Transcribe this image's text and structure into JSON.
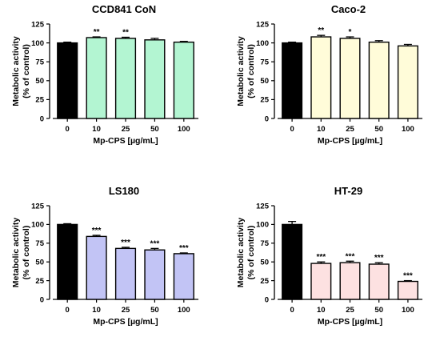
{
  "chart_data": [
    {
      "type": "bar",
      "title": "CCD841 CoN",
      "xlabel": "Mp-CPS [µg/mL]",
      "ylabel": [
        "Metabolic activity",
        "(% of control)"
      ],
      "ylim": [
        0,
        125
      ],
      "yticks": [
        0,
        25,
        50,
        75,
        100,
        125
      ],
      "categories": [
        "0",
        "10",
        "25",
        "50",
        "100"
      ],
      "values": [
        100,
        107,
        106,
        104,
        101
      ],
      "errors": [
        1,
        1,
        1.5,
        2,
        1
      ],
      "significance": [
        "",
        "**",
        "**",
        "",
        ""
      ],
      "bar_colors": [
        "#000000",
        "#b3f5d2",
        "#b3f5d2",
        "#b3f5d2",
        "#b3f5d2"
      ]
    },
    {
      "type": "bar",
      "title": "Caco-2",
      "xlabel": "Mp-CPS [µg/mL]",
      "ylabel": [
        "Metabolic activity",
        "(% of control)"
      ],
      "ylim": [
        0,
        125
      ],
      "yticks": [
        0,
        25,
        50,
        75,
        100,
        125
      ],
      "categories": [
        "0",
        "10",
        "25",
        "50",
        "100"
      ],
      "values": [
        100,
        108,
        106,
        101,
        96
      ],
      "errors": [
        1,
        2,
        2,
        2,
        2
      ],
      "significance": [
        "",
        "**",
        "*",
        "",
        ""
      ],
      "bar_colors": [
        "#000000",
        "#fffcd9",
        "#fffcd9",
        "#fffcd9",
        "#fffcd9"
      ]
    },
    {
      "type": "bar",
      "title": "LS180",
      "xlabel": "Mp-CPS [µg/mL]",
      "ylabel": [
        "Metabolic activity",
        "(% of control)"
      ],
      "ylim": [
        0,
        125
      ],
      "yticks": [
        0,
        25,
        50,
        75,
        100,
        125
      ],
      "categories": [
        "0",
        "10",
        "25",
        "50",
        "100"
      ],
      "values": [
        100,
        84,
        68,
        66,
        61
      ],
      "errors": [
        1,
        1.5,
        1.5,
        2,
        1
      ],
      "significance": [
        "",
        "***",
        "***",
        "***",
        "***"
      ],
      "bar_colors": [
        "#000000",
        "#c2c4f5",
        "#c2c4f5",
        "#c2c4f5",
        "#c2c4f5"
      ]
    },
    {
      "type": "bar",
      "title": "HT-29",
      "xlabel": "Mp-CPS [µg/mL]",
      "ylabel": [
        "Metabolic activity",
        "(% of control)"
      ],
      "ylim": [
        0,
        125
      ],
      "yticks": [
        0,
        25,
        50,
        75,
        100,
        125
      ],
      "categories": [
        "0",
        "10",
        "25",
        "50",
        "100"
      ],
      "values": [
        100,
        48,
        49,
        47,
        24
      ],
      "errors": [
        4,
        2,
        2,
        2,
        1
      ],
      "significance": [
        "",
        "***",
        "***",
        "***",
        "***"
      ],
      "bar_colors": [
        "#000000",
        "#fde1e1",
        "#fde1e1",
        "#fde1e1",
        "#fde1e1"
      ]
    }
  ]
}
